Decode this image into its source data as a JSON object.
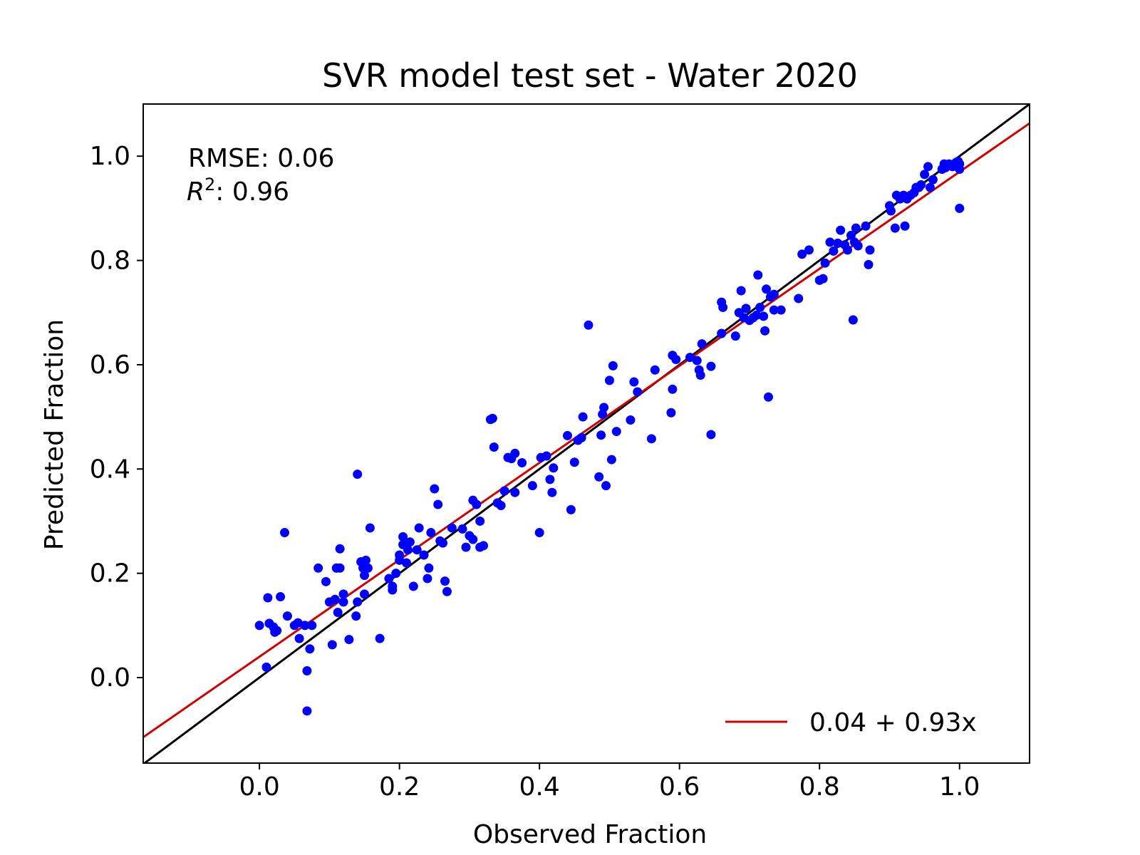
{
  "chart_data": {
    "type": "scatter",
    "title": "SVR model test set - Water 2020",
    "xlabel": "Observed Fraction",
    "ylabel": "Predicted Fraction",
    "xlim": [
      -0.166,
      1.1
    ],
    "ylim": [
      -0.164,
      1.1
    ],
    "x_ticks": [
      0.0,
      0.2,
      0.4,
      0.6,
      0.8,
      1.0
    ],
    "x_tick_labels": [
      "0.0",
      "0.2",
      "0.4",
      "0.6",
      "0.8",
      "1.0"
    ],
    "y_ticks": [
      0.0,
      0.2,
      0.4,
      0.6,
      0.8,
      1.0
    ],
    "y_tick_labels": [
      "0.0",
      "0.2",
      "0.4",
      "0.6",
      "0.8",
      "1.0"
    ],
    "grid": false,
    "stats": {
      "rmse_label": "RMSE: 0.06",
      "r2_symbol": "R",
      "r2_exponent": "2",
      "r2_value_text": ": 0.96"
    },
    "legend": {
      "placement": "lower-right",
      "entries": [
        "0.04 + 0.93x"
      ]
    },
    "reference_line": {
      "description_type": "identity",
      "color": "#000000",
      "intercept": 0.0,
      "slope": 1.0
    },
    "fit_line": {
      "name": "0.04 + 0.93x",
      "color": "#d00000",
      "intercept": 0.04,
      "slope": 0.93
    },
    "series": [
      {
        "color": "#0000ff",
        "points": [
          [
            0.0,
            0.1
          ],
          [
            0.01,
            0.02
          ],
          [
            0.012,
            0.153
          ],
          [
            0.014,
            0.104
          ],
          [
            0.02,
            0.097
          ],
          [
            0.022,
            0.087
          ],
          [
            0.025,
            0.09
          ],
          [
            0.03,
            0.155
          ],
          [
            0.036,
            0.278
          ],
          [
            0.04,
            0.118
          ],
          [
            0.05,
            0.1
          ],
          [
            0.055,
            0.105
          ],
          [
            0.057,
            0.075
          ],
          [
            0.065,
            0.1
          ],
          [
            0.068,
            0.013
          ],
          [
            0.068,
            -0.064
          ],
          [
            0.072,
            0.055
          ],
          [
            0.075,
            0.1
          ],
          [
            0.084,
            0.21
          ],
          [
            0.095,
            0.184
          ],
          [
            0.1,
            0.145
          ],
          [
            0.104,
            0.063
          ],
          [
            0.108,
            0.15
          ],
          [
            0.11,
            0.21
          ],
          [
            0.112,
            0.125
          ],
          [
            0.115,
            0.21
          ],
          [
            0.115,
            0.247
          ],
          [
            0.12,
            0.16
          ],
          [
            0.12,
            0.145
          ],
          [
            0.128,
            0.073
          ],
          [
            0.138,
            0.118
          ],
          [
            0.14,
            0.39
          ],
          [
            0.14,
            0.145
          ],
          [
            0.145,
            0.222
          ],
          [
            0.148,
            0.21
          ],
          [
            0.15,
            0.16
          ],
          [
            0.15,
            0.196
          ],
          [
            0.152,
            0.225
          ],
          [
            0.155,
            0.21
          ],
          [
            0.158,
            0.287
          ],
          [
            0.172,
            0.075
          ],
          [
            0.185,
            0.19
          ],
          [
            0.19,
            0.175
          ],
          [
            0.19,
            0.168
          ],
          [
            0.195,
            0.2
          ],
          [
            0.2,
            0.225
          ],
          [
            0.2,
            0.235
          ],
          [
            0.205,
            0.255
          ],
          [
            0.205,
            0.27
          ],
          [
            0.21,
            0.22
          ],
          [
            0.212,
            0.245
          ],
          [
            0.215,
            0.26
          ],
          [
            0.22,
            0.175
          ],
          [
            0.225,
            0.245
          ],
          [
            0.228,
            0.287
          ],
          [
            0.235,
            0.235
          ],
          [
            0.24,
            0.19
          ],
          [
            0.242,
            0.21
          ],
          [
            0.245,
            0.278
          ],
          [
            0.25,
            0.362
          ],
          [
            0.255,
            0.332
          ],
          [
            0.258,
            0.262
          ],
          [
            0.262,
            0.258
          ],
          [
            0.265,
            0.185
          ],
          [
            0.268,
            0.165
          ],
          [
            0.275,
            0.287
          ],
          [
            0.29,
            0.285
          ],
          [
            0.295,
            0.25
          ],
          [
            0.3,
            0.272
          ],
          [
            0.305,
            0.34
          ],
          [
            0.305,
            0.265
          ],
          [
            0.31,
            0.332
          ],
          [
            0.315,
            0.25
          ],
          [
            0.315,
            0.3
          ],
          [
            0.32,
            0.253
          ],
          [
            0.33,
            0.495
          ],
          [
            0.333,
            0.497
          ],
          [
            0.335,
            0.442
          ],
          [
            0.34,
            0.335
          ],
          [
            0.345,
            0.33
          ],
          [
            0.35,
            0.358
          ],
          [
            0.355,
            0.422
          ],
          [
            0.36,
            0.42
          ],
          [
            0.365,
            0.355
          ],
          [
            0.365,
            0.43
          ],
          [
            0.375,
            0.412
          ],
          [
            0.39,
            0.368
          ],
          [
            0.4,
            0.278
          ],
          [
            0.402,
            0.422
          ],
          [
            0.41,
            0.425
          ],
          [
            0.415,
            0.38
          ],
          [
            0.418,
            0.355
          ],
          [
            0.42,
            0.402
          ],
          [
            0.44,
            0.464
          ],
          [
            0.445,
            0.322
          ],
          [
            0.45,
            0.413
          ],
          [
            0.455,
            0.455
          ],
          [
            0.46,
            0.46
          ],
          [
            0.462,
            0.5
          ],
          [
            0.47,
            0.676
          ],
          [
            0.485,
            0.385
          ],
          [
            0.488,
            0.465
          ],
          [
            0.49,
            0.505
          ],
          [
            0.492,
            0.518
          ],
          [
            0.495,
            0.368
          ],
          [
            0.5,
            0.57
          ],
          [
            0.503,
            0.418
          ],
          [
            0.505,
            0.598
          ],
          [
            0.51,
            0.472
          ],
          [
            0.53,
            0.494
          ],
          [
            0.535,
            0.567
          ],
          [
            0.54,
            0.548
          ],
          [
            0.56,
            0.458
          ],
          [
            0.565,
            0.59
          ],
          [
            0.588,
            0.508
          ],
          [
            0.59,
            0.553
          ],
          [
            0.59,
            0.618
          ],
          [
            0.595,
            0.61
          ],
          [
            0.615,
            0.614
          ],
          [
            0.625,
            0.608
          ],
          [
            0.628,
            0.59
          ],
          [
            0.63,
            0.58
          ],
          [
            0.632,
            0.64
          ],
          [
            0.645,
            0.597
          ],
          [
            0.645,
            0.466
          ],
          [
            0.66,
            0.66
          ],
          [
            0.66,
            0.72
          ],
          [
            0.662,
            0.71
          ],
          [
            0.68,
            0.655
          ],
          [
            0.685,
            0.7
          ],
          [
            0.688,
            0.742
          ],
          [
            0.692,
            0.69
          ],
          [
            0.695,
            0.708
          ],
          [
            0.7,
            0.685
          ],
          [
            0.705,
            0.69
          ],
          [
            0.71,
            0.695
          ],
          [
            0.712,
            0.772
          ],
          [
            0.715,
            0.71
          ],
          [
            0.72,
            0.693
          ],
          [
            0.722,
            0.665
          ],
          [
            0.724,
            0.745
          ],
          [
            0.727,
            0.538
          ],
          [
            0.73,
            0.73
          ],
          [
            0.735,
            0.735
          ],
          [
            0.735,
            0.705
          ],
          [
            0.745,
            0.705
          ],
          [
            0.77,
            0.727
          ],
          [
            0.775,
            0.812
          ],
          [
            0.785,
            0.82
          ],
          [
            0.8,
            0.762
          ],
          [
            0.805,
            0.765
          ],
          [
            0.808,
            0.795
          ],
          [
            0.815,
            0.835
          ],
          [
            0.82,
            0.818
          ],
          [
            0.826,
            0.833
          ],
          [
            0.83,
            0.858
          ],
          [
            0.836,
            0.83
          ],
          [
            0.84,
            0.82
          ],
          [
            0.845,
            0.848
          ],
          [
            0.848,
            0.686
          ],
          [
            0.85,
            0.835
          ],
          [
            0.852,
            0.862
          ],
          [
            0.855,
            0.828
          ],
          [
            0.866,
            0.866
          ],
          [
            0.87,
            0.792
          ],
          [
            0.872,
            0.82
          ],
          [
            0.9,
            0.905
          ],
          [
            0.902,
            0.895
          ],
          [
            0.908,
            0.862
          ],
          [
            0.91,
            0.925
          ],
          [
            0.915,
            0.918
          ],
          [
            0.92,
            0.925
          ],
          [
            0.922,
            0.866
          ],
          [
            0.925,
            0.918
          ],
          [
            0.93,
            0.925
          ],
          [
            0.935,
            0.93
          ],
          [
            0.938,
            0.94
          ],
          [
            0.942,
            0.94
          ],
          [
            0.945,
            0.945
          ],
          [
            0.95,
            0.965
          ],
          [
            0.955,
            0.98
          ],
          [
            0.958,
            0.94
          ],
          [
            0.962,
            0.955
          ],
          [
            0.975,
            0.975
          ],
          [
            0.978,
            0.985
          ],
          [
            0.98,
            0.978
          ],
          [
            0.985,
            0.985
          ],
          [
            0.99,
            0.98
          ],
          [
            0.995,
            0.988
          ],
          [
            0.998,
            0.99
          ],
          [
            1.0,
            0.9
          ],
          [
            1.0,
            0.975
          ],
          [
            1.0,
            0.985
          ]
        ]
      }
    ]
  }
}
